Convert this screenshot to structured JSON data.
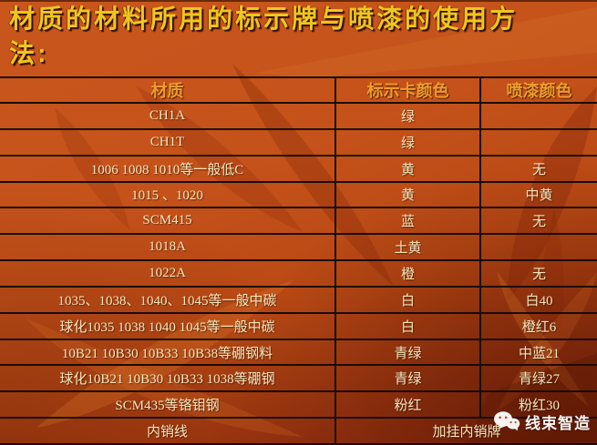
{
  "title": "材质的材料所用的标示牌与喷漆的使用方法:",
  "table": {
    "headers": [
      "材质",
      "标示卡颜色",
      "喷漆颜色"
    ],
    "rows": [
      {
        "material": "CH1A",
        "card_color": "绿",
        "paint_color": ""
      },
      {
        "material": "CH1T",
        "card_color": "绿",
        "paint_color": ""
      },
      {
        "material": "1006 1008 1010等一般低C",
        "card_color": "黄",
        "paint_color": "无"
      },
      {
        "material": "1015 、1020",
        "card_color": "黄",
        "paint_color": "中黄"
      },
      {
        "material": "SCM415",
        "card_color": "蓝",
        "paint_color": "无"
      },
      {
        "material": "1018A",
        "card_color": "土黄",
        "paint_color": ""
      },
      {
        "material": "1022A",
        "card_color": "橙",
        "paint_color": "无"
      },
      {
        "material": "1035、1038、1040、1045等一般中碳",
        "card_color": "白",
        "paint_color": "白40"
      },
      {
        "material": "球化1035 1038 1040 1045等一般中碳",
        "card_color": "白",
        "paint_color": "橙红6"
      },
      {
        "material": "10B21 10B30 10B33 10B38等硼钢料",
        "card_color": "青绿",
        "paint_color": "中蓝21"
      },
      {
        "material": "球化10B21 10B30 10B33 1038等硼钢",
        "card_color": "青绿",
        "paint_color": "青绿27"
      },
      {
        "material": "SCM435等铬钼钢",
        "card_color": "粉红",
        "paint_color": "粉红30"
      },
      {
        "material": "内销线",
        "merged": "加挂内销牌"
      }
    ]
  },
  "watermark": {
    "label": "线束智造",
    "icon": "wechat-icon"
  },
  "colors": {
    "title_gold": "#eec71e",
    "header_orange": "#ef9d2a",
    "cell_cream": "#f4e7bd",
    "border_dark": "#1b0b03",
    "background_orange": "#c5521a",
    "background_dark_red": "#8c2a0c",
    "watermark_white": "#ffffff"
  }
}
